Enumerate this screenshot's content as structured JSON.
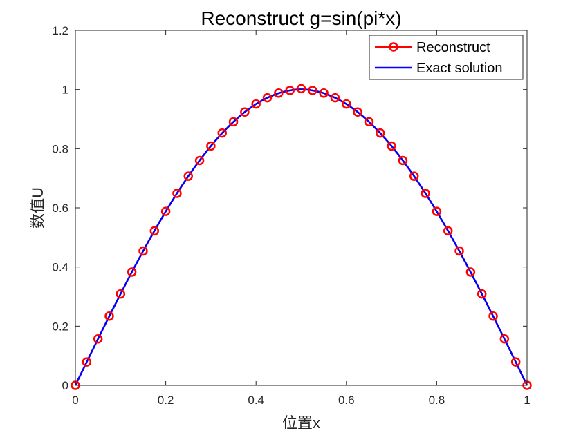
{
  "chart_data": {
    "type": "line",
    "title": "Reconstruct g=sin(pi*x)",
    "xlabel": "位置x",
    "ylabel": "数值U",
    "xlim": [
      0,
      1
    ],
    "ylim": [
      0,
      1.2
    ],
    "xticks": [
      0,
      0.2,
      0.4,
      0.6,
      0.8,
      1
    ],
    "xtick_labels": [
      "0",
      "0.2",
      "0.4",
      "0.6",
      "0.8",
      "1"
    ],
    "yticks": [
      0,
      0.2,
      0.4,
      0.6,
      0.8,
      1,
      1.2
    ],
    "ytick_labels": [
      "0",
      "0.2",
      "0.4",
      "0.6",
      "0.8",
      "1",
      "1.2"
    ],
    "grid": false,
    "legend_position": "top-right",
    "series": [
      {
        "name": "Reconstruct",
        "color": "#ff0000",
        "style": "line-with-circle-markers",
        "x": [
          0,
          0.025,
          0.05,
          0.075,
          0.1,
          0.125,
          0.15,
          0.175,
          0.2,
          0.225,
          0.25,
          0.275,
          0.3,
          0.325,
          0.35,
          0.375,
          0.4,
          0.425,
          0.45,
          0.475,
          0.5,
          0.525,
          0.55,
          0.575,
          0.6,
          0.625,
          0.65,
          0.675,
          0.7,
          0.725,
          0.75,
          0.775,
          0.8,
          0.825,
          0.85,
          0.875,
          0.9,
          0.925,
          0.95,
          0.975,
          1
        ],
        "y": [
          0,
          0.079,
          0.157,
          0.234,
          0.309,
          0.383,
          0.454,
          0.522,
          0.588,
          0.649,
          0.707,
          0.76,
          0.809,
          0.853,
          0.891,
          0.924,
          0.951,
          0.972,
          0.988,
          0.997,
          1.003,
          0.997,
          0.988,
          0.972,
          0.951,
          0.924,
          0.891,
          0.853,
          0.809,
          0.76,
          0.707,
          0.649,
          0.588,
          0.522,
          0.454,
          0.383,
          0.309,
          0.234,
          0.157,
          0.079,
          0
        ]
      },
      {
        "name": "Exact solution",
        "color": "#0000ff",
        "style": "line",
        "function": "sin(pi*x)",
        "x": [
          0,
          0.025,
          0.05,
          0.075,
          0.1,
          0.125,
          0.15,
          0.175,
          0.2,
          0.225,
          0.25,
          0.275,
          0.3,
          0.325,
          0.35,
          0.375,
          0.4,
          0.425,
          0.45,
          0.475,
          0.5,
          0.525,
          0.55,
          0.575,
          0.6,
          0.625,
          0.65,
          0.675,
          0.7,
          0.725,
          0.75,
          0.775,
          0.8,
          0.825,
          0.85,
          0.875,
          0.9,
          0.925,
          0.95,
          0.975,
          1
        ],
        "y": [
          0,
          0.078,
          0.156,
          0.233,
          0.309,
          0.383,
          0.454,
          0.522,
          0.588,
          0.649,
          0.707,
          0.76,
          0.809,
          0.853,
          0.891,
          0.924,
          0.951,
          0.972,
          0.988,
          0.997,
          1.0,
          0.997,
          0.988,
          0.972,
          0.951,
          0.924,
          0.891,
          0.853,
          0.809,
          0.76,
          0.707,
          0.649,
          0.588,
          0.522,
          0.454,
          0.383,
          0.309,
          0.233,
          0.156,
          0.078,
          0
        ]
      }
    ]
  }
}
